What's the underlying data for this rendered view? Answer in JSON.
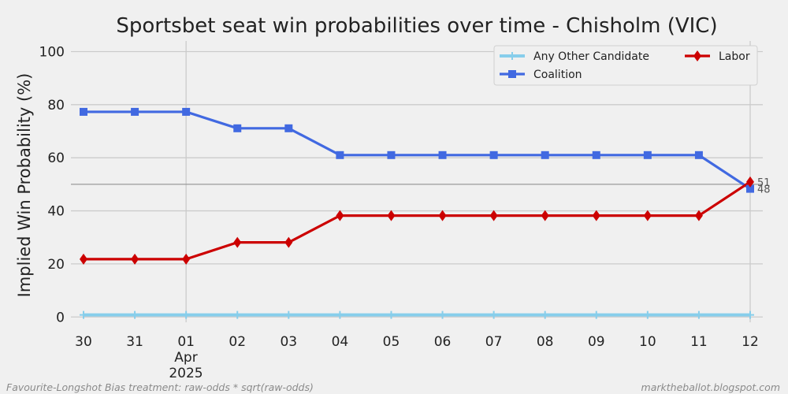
{
  "chart_data": {
    "type": "line",
    "title": "Sportsbet seat win probabilities over time - Chisholm (VIC)",
    "ylabel": "Implied Win Probability (%)",
    "xlabel": "",
    "x": [
      "2025-03-30",
      "2025-03-31",
      "2025-04-01",
      "2025-04-02",
      "2025-04-03",
      "2025-04-04",
      "2025-04-05",
      "2025-04-06",
      "2025-04-07",
      "2025-04-08",
      "2025-04-09",
      "2025-04-10",
      "2025-04-11",
      "2025-04-12"
    ],
    "x_tick_labels": [
      "30",
      "31",
      "01",
      "02",
      "03",
      "04",
      "05",
      "06",
      "07",
      "08",
      "09",
      "10",
      "11",
      "12"
    ],
    "x_month_label": "Apr",
    "x_year_label": "2025",
    "ylim": [
      -2,
      104
    ],
    "y_ticks": [
      "0",
      "20",
      "40",
      "60",
      "80",
      "100"
    ],
    "grid": true,
    "reference_line_y": 50,
    "legend_position": "top-right",
    "series": [
      {
        "name": "Any Other Candidate",
        "color": "#87ceeb",
        "marker": "plus",
        "values": [
          0.8,
          0.8,
          0.8,
          0.8,
          0.8,
          0.8,
          0.8,
          0.8,
          0.8,
          0.8,
          0.8,
          0.8,
          0.8,
          0.8
        ]
      },
      {
        "name": "Coalition",
        "color": "#4169e1",
        "marker": "square",
        "values": [
          77.3,
          77.3,
          77.3,
          71.1,
          71.1,
          61,
          61,
          61,
          61,
          61,
          61,
          61,
          61,
          48.3
        ]
      },
      {
        "name": "Labor",
        "color": "#cc0000",
        "marker": "diamond",
        "values": [
          21.8,
          21.8,
          21.8,
          28.1,
          28.1,
          38.2,
          38.2,
          38.2,
          38.2,
          38.2,
          38.2,
          38.2,
          38.2,
          50.9
        ]
      }
    ],
    "end_labels": [
      {
        "series": "Labor",
        "text": "51"
      },
      {
        "series": "Coalition",
        "text": "48"
      }
    ],
    "footnote_left": "Favourite-Longshot Bias treatment: raw-odds * sqrt(raw-odds)",
    "footnote_right": "marktheballot.blogspot.com"
  }
}
